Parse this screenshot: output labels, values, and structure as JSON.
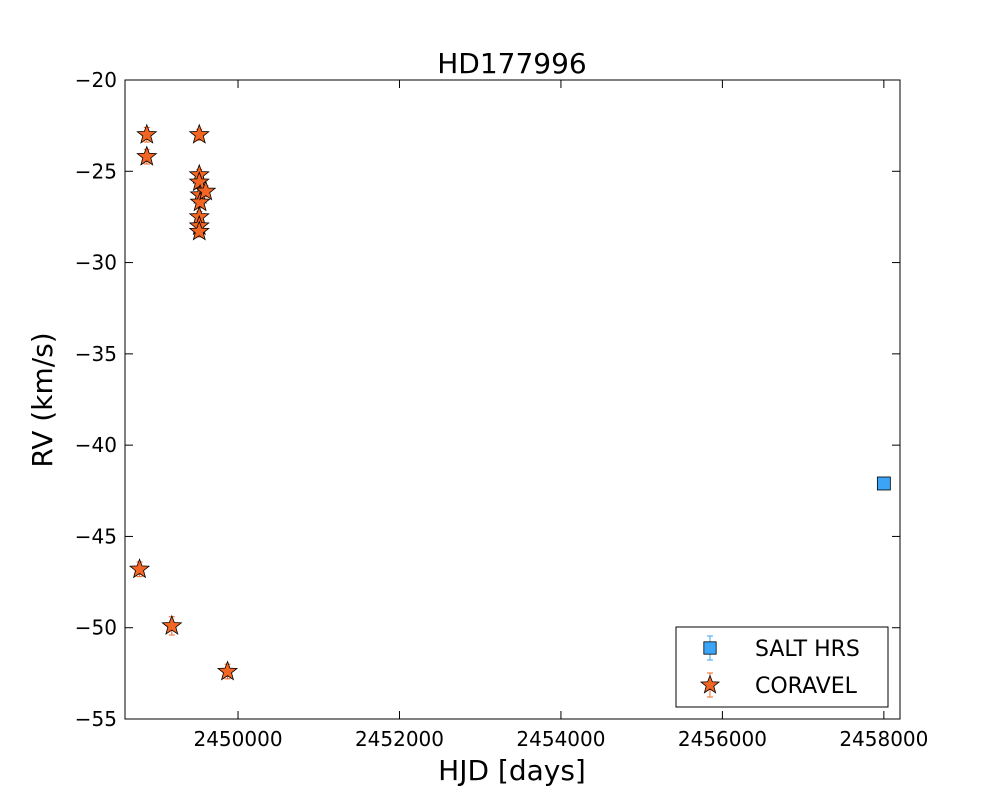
{
  "chart_data": {
    "type": "scatter",
    "title": "HD177996",
    "xlabel": "HJD [days]",
    "ylabel": "RV (km/s)",
    "xlim": [
      2448600,
      2458200
    ],
    "ylim": [
      -55,
      -20
    ],
    "xticks": [
      2450000,
      2452000,
      2454000,
      2456000,
      2458000
    ],
    "yticks": [
      -20,
      -25,
      -30,
      -35,
      -40,
      -45,
      -50,
      -55
    ],
    "xtick_labels": [
      "2450000",
      "2452000",
      "2454000",
      "2456000",
      "2458000"
    ],
    "ytick_labels": [
      "−20",
      "−25",
      "−30",
      "−35",
      "−40",
      "−45",
      "−50",
      "−55"
    ],
    "grid": false,
    "legend_position": "lower-right",
    "series": [
      {
        "name": "SALT HRS",
        "marker": "square",
        "color": "#3ba4f7",
        "points": [
          {
            "x": 2458000,
            "y": -42.1,
            "err": 0.3
          }
        ]
      },
      {
        "name": "CORAVEL",
        "marker": "star",
        "color": "#f26522",
        "points": [
          {
            "x": 2448780,
            "y": -46.8,
            "err": 0.4
          },
          {
            "x": 2448870,
            "y": -23.0,
            "err": 0.4
          },
          {
            "x": 2448870,
            "y": -24.2,
            "err": 0.4
          },
          {
            "x": 2449180,
            "y": -49.9,
            "err": 0.5
          },
          {
            "x": 2449520,
            "y": -23.0,
            "err": 0.3
          },
          {
            "x": 2449520,
            "y": -25.2,
            "err": 0.3
          },
          {
            "x": 2449520,
            "y": -25.6,
            "err": 0.3
          },
          {
            "x": 2449530,
            "y": -26.3,
            "err": 0.3
          },
          {
            "x": 2449530,
            "y": -26.7,
            "err": 0.3
          },
          {
            "x": 2449600,
            "y": -26.1,
            "err": 0.3
          },
          {
            "x": 2449520,
            "y": -27.5,
            "err": 0.3
          },
          {
            "x": 2449520,
            "y": -28.0,
            "err": 0.3
          },
          {
            "x": 2449520,
            "y": -28.3,
            "err": 0.3
          },
          {
            "x": 2449870,
            "y": -52.4,
            "err": 0.4
          }
        ]
      }
    ]
  }
}
